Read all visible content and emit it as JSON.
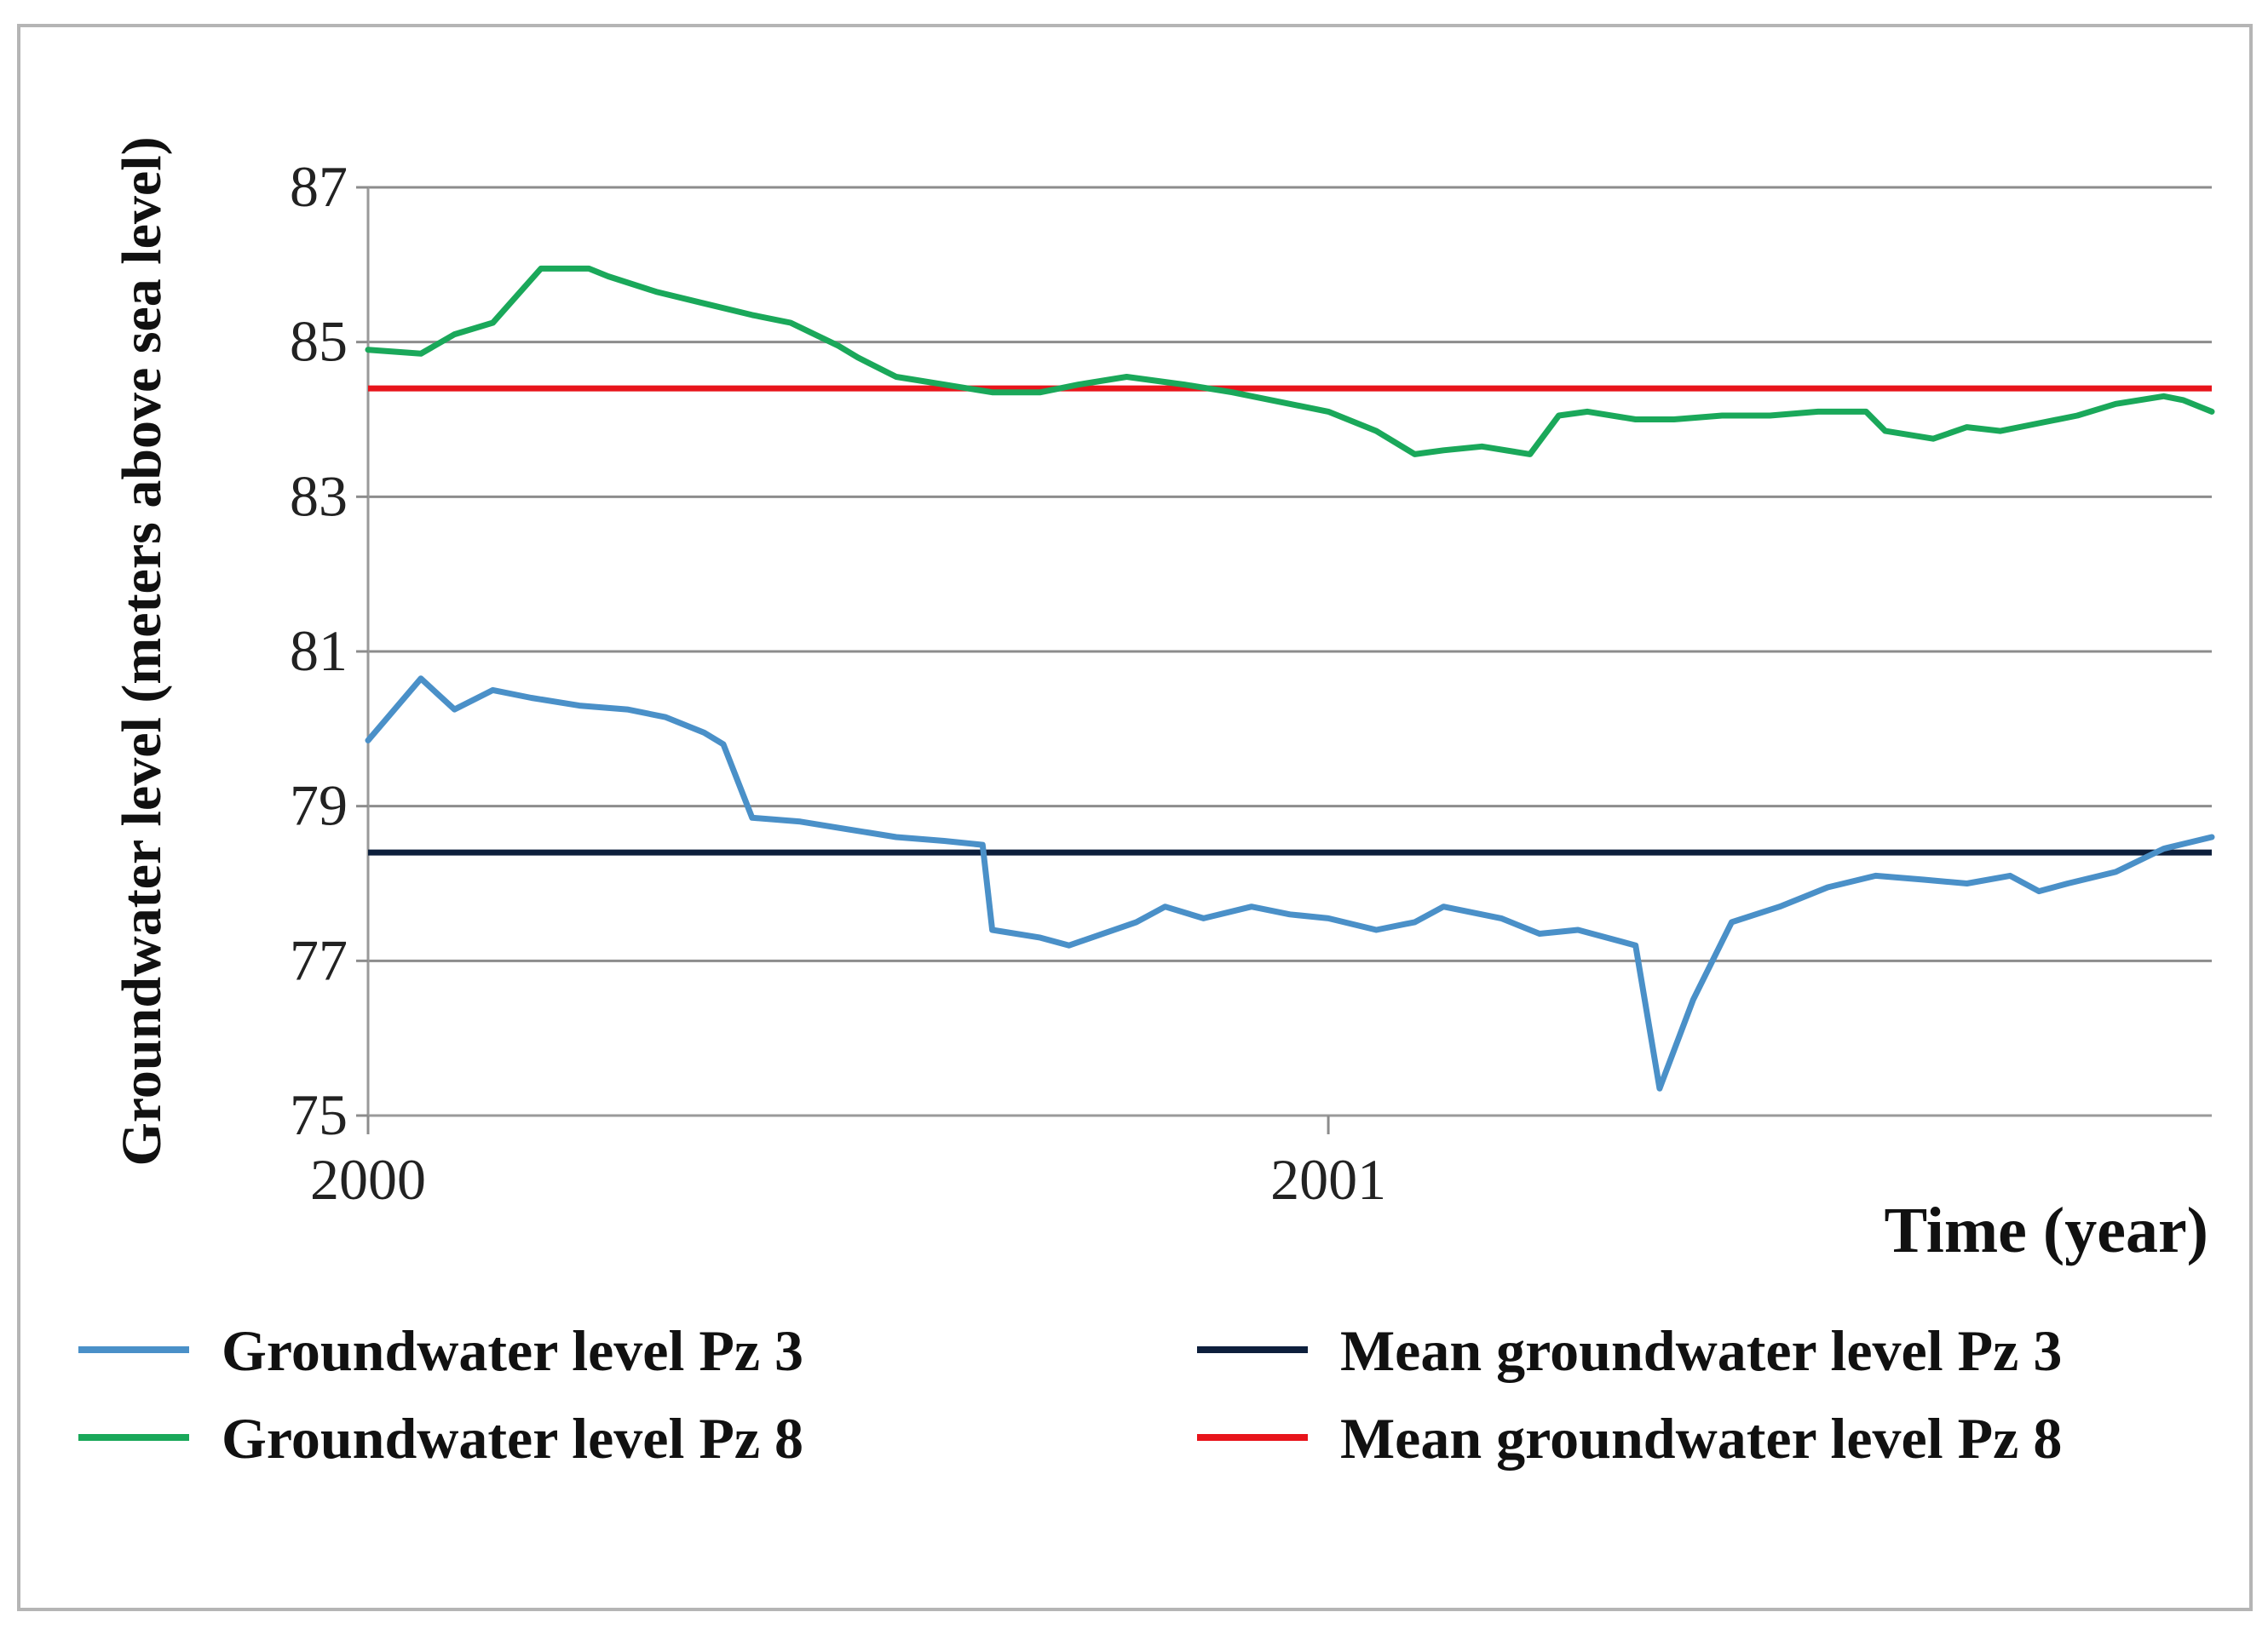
{
  "chart_data": {
    "type": "line",
    "title": "",
    "xlabel": "Time (year)",
    "ylabel": "Groundwater level (meters above sea level)",
    "ylim": [
      75,
      87
    ],
    "xlim": [
      2000,
      2001.92
    ],
    "yticks": [
      75,
      77,
      79,
      81,
      83,
      85,
      87
    ],
    "yticklabels": [
      "75",
      "77",
      "79",
      "81",
      "83",
      "85",
      "87"
    ],
    "xticks": [
      2000,
      2001
    ],
    "xticklabels": [
      "2000",
      "2001"
    ],
    "grid": "horizontal",
    "legend_position": "bottom",
    "series": [
      {
        "name": "Groundwater level Pz 3",
        "color": "#4a90c8",
        "style": "line",
        "x": [
          2000.0,
          2000.055,
          2000.09,
          2000.13,
          2000.17,
          2000.22,
          2000.27,
          2000.31,
          2000.35,
          2000.37,
          2000.4,
          2000.45,
          2000.5,
          2000.55,
          2000.6,
          2000.64,
          2000.65,
          2000.7,
          2000.73,
          2000.8,
          2000.83,
          2000.87,
          2000.92,
          2000.96,
          2001.0,
          2001.05,
          2001.09,
          2001.12,
          2001.18,
          2001.22,
          2001.26,
          2001.32,
          2001.345,
          2001.38,
          2001.42,
          2001.47,
          2001.52,
          2001.57,
          2001.62,
          2001.665,
          2001.71,
          2001.74,
          2001.77,
          2001.82,
          2001.87,
          2001.92
        ],
        "values": [
          79.85,
          80.65,
          80.25,
          80.5,
          80.4,
          80.3,
          80.25,
          80.15,
          79.95,
          79.8,
          78.85,
          78.8,
          78.7,
          78.6,
          78.55,
          78.5,
          77.4,
          77.3,
          77.2,
          77.5,
          77.7,
          77.55,
          77.7,
          77.6,
          77.55,
          77.4,
          77.5,
          77.7,
          77.55,
          77.35,
          77.4,
          77.2,
          75.35,
          76.5,
          77.5,
          77.7,
          77.95,
          78.1,
          78.05,
          78.0,
          78.1,
          77.9,
          78.0,
          78.15,
          78.45,
          78.6
        ]
      },
      {
        "name": "Groundwater level Pz 8",
        "color": "#1aa85a",
        "style": "line",
        "x": [
          2000.0,
          2000.055,
          2000.09,
          2000.13,
          2000.18,
          2000.23,
          2000.25,
          2000.3,
          2000.35,
          2000.4,
          2000.44,
          2000.49,
          2000.51,
          2000.55,
          2000.6,
          2000.65,
          2000.7,
          2000.74,
          2000.79,
          2000.85,
          2000.9,
          2000.94,
          2001.0,
          2001.05,
          2001.09,
          2001.12,
          2001.16,
          2001.21,
          2001.24,
          2001.27,
          2001.32,
          2001.36,
          2001.41,
          2001.46,
          2001.51,
          2001.56,
          2001.58,
          2001.63,
          2001.665,
          2001.7,
          2001.74,
          2001.78,
          2001.82,
          2001.87,
          2001.89,
          2001.92
        ],
        "values": [
          84.9,
          84.85,
          85.1,
          85.25,
          85.95,
          85.95,
          85.85,
          85.65,
          85.5,
          85.35,
          85.25,
          84.95,
          84.8,
          84.55,
          84.45,
          84.35,
          84.35,
          84.45,
          84.55,
          84.45,
          84.35,
          84.25,
          84.1,
          83.85,
          83.55,
          83.6,
          83.65,
          83.55,
          84.05,
          84.1,
          84.0,
          84.0,
          84.05,
          84.05,
          84.1,
          84.1,
          83.85,
          83.75,
          83.9,
          83.85,
          83.95,
          84.05,
          84.2,
          84.3,
          84.25,
          84.1
        ]
      },
      {
        "name": "Mean groundwater level Pz 3",
        "color": "#0d1f3c",
        "style": "hline",
        "values": [
          78.4
        ]
      },
      {
        "name": "Mean groundwater level Pz 8",
        "color": "#e8141b",
        "style": "hline",
        "values": [
          84.4
        ]
      }
    ],
    "legend": [
      "Groundwater level Pz 3",
      "Groundwater level Pz 8",
      "Mean groundwater level Pz 3",
      "Mean groundwater level Pz 8"
    ]
  }
}
